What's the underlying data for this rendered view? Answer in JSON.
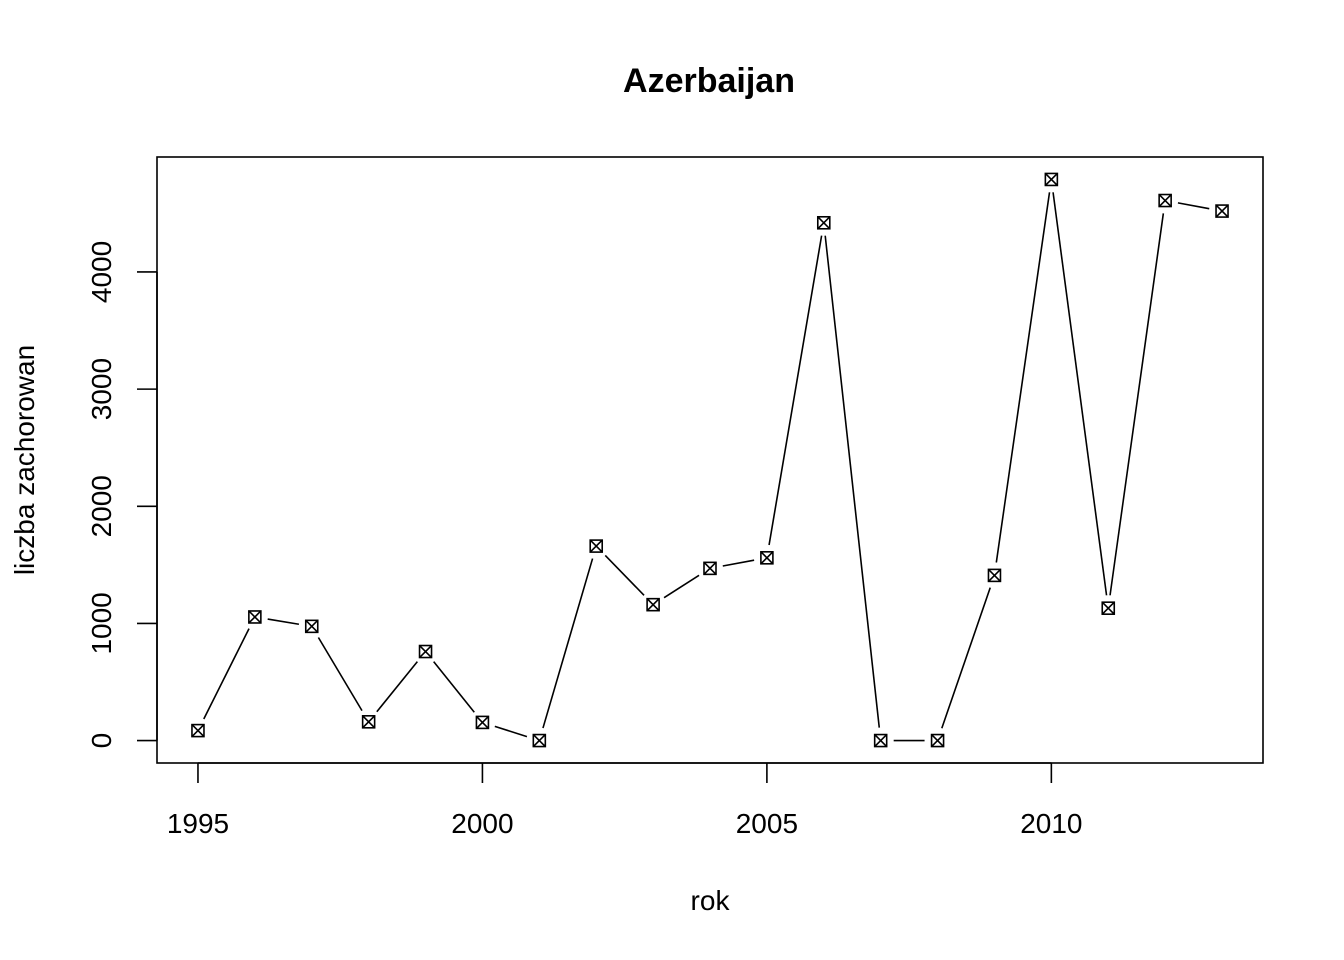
{
  "chart_data": {
    "type": "line",
    "title": "Azerbaijan",
    "xlabel": "rok",
    "ylabel": "liczba zachorowan",
    "x": [
      1995,
      1996,
      1997,
      1998,
      1999,
      2000,
      2001,
      2002,
      2003,
      2004,
      2005,
      2006,
      2007,
      2008,
      2009,
      2010,
      2011,
      2012,
      2013
    ],
    "series": [
      {
        "values": [
          85,
          1055,
          975,
          160,
          760,
          155,
          0,
          1660,
          1160,
          1470,
          1560,
          4420,
          0,
          0,
          1410,
          4790,
          1130,
          4610,
          4520
        ]
      }
    ],
    "x_ticks": [
      1995,
      2000,
      2005,
      2010
    ],
    "y_ticks": [
      0,
      1000,
      2000,
      3000,
      4000
    ],
    "xlim": [
      1994.28,
      2013.72
    ],
    "ylim": [
      -191.6,
      4981.6
    ],
    "marker": "boxed-x",
    "line_style": "line-with-gaps-at-points",
    "grid": false,
    "legend": "none",
    "color": "#000000"
  }
}
